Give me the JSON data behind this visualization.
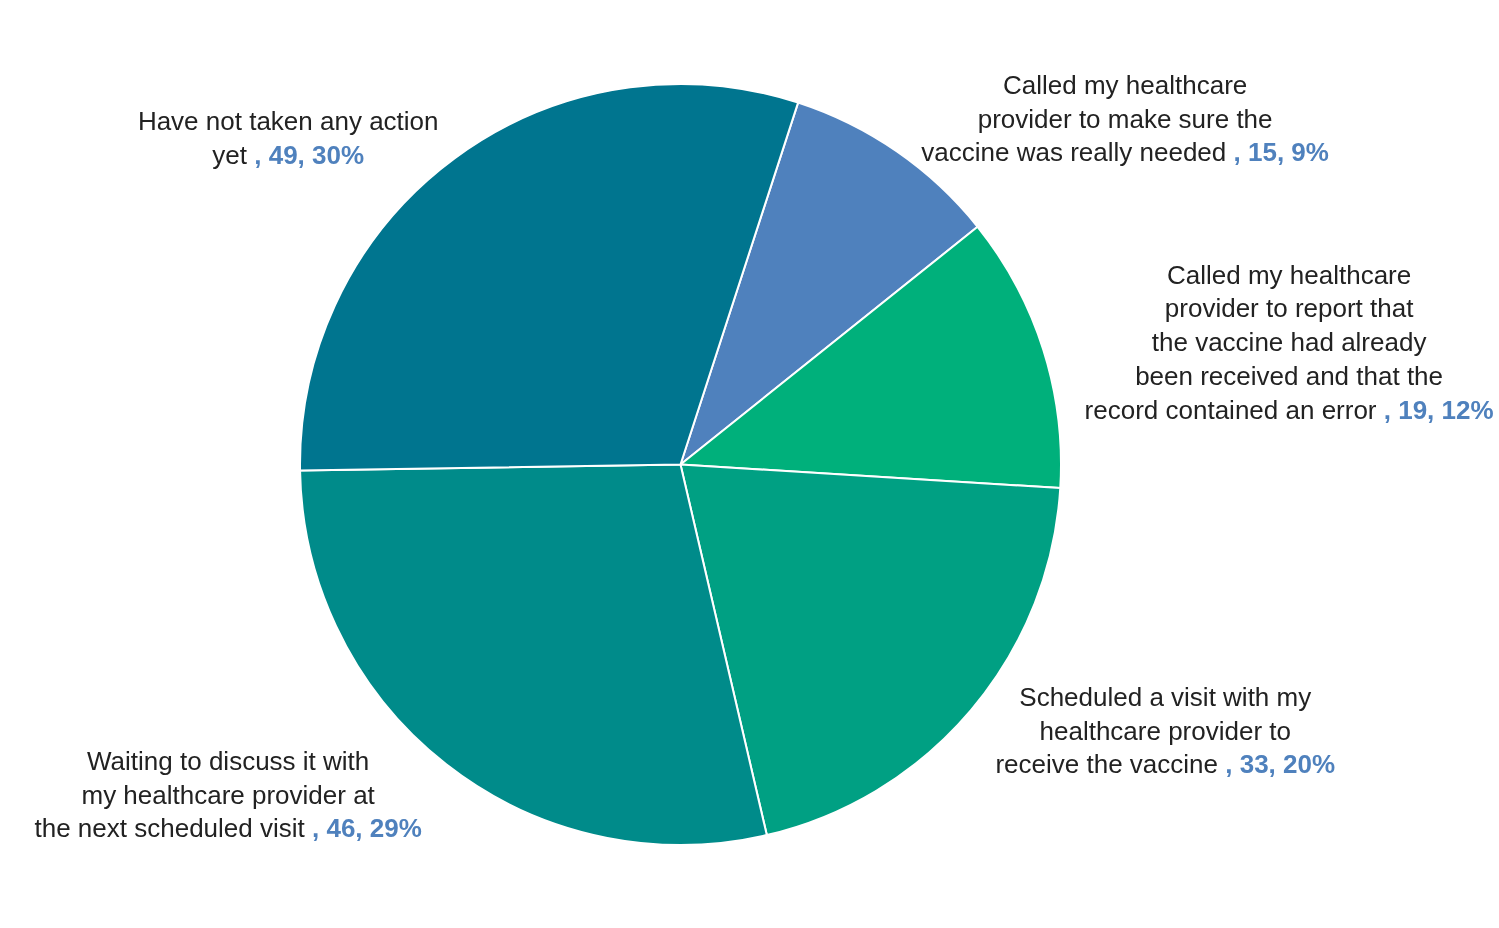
{
  "chart_data": {
    "type": "pie",
    "categories": [
      "Called my healthcare provider to make sure the vaccine was really needed",
      "Called my healthcare provider to report that the vaccine had already been received and that the record contained an error",
      "Scheduled a visit with my healthcare provider to receive the vaccine",
      "Waiting to discuss it with my healthcare provider at the next scheduled visit",
      "Have not taken any action yet"
    ],
    "values": [
      15,
      19,
      33,
      46,
      49
    ],
    "value_labels": [
      ", 15, 9%",
      ", 19, 12%",
      ", 33, 20%",
      ", 46, 29%",
      ", 49, 30%"
    ],
    "colors": [
      "#4f81bd",
      "#00b07b",
      "#00a083",
      "#008b8a",
      "#00758f"
    ],
    "legend": false
  }
}
